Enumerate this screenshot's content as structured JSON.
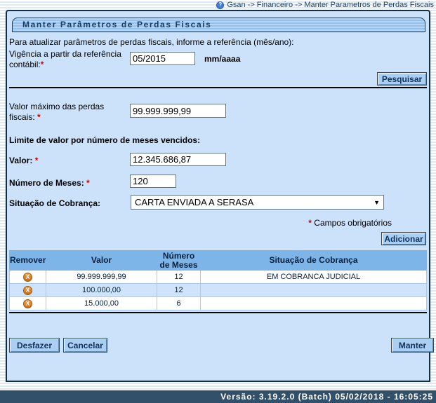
{
  "colors": {
    "panel_bg": "#cce2fa",
    "panel_border": "#152e47",
    "table_header_blue": "#7db5e9",
    "row_alt_blue": "#cfe4fa",
    "button_blue": "#abcff2",
    "footer_navy": "#33506b",
    "remove_orange": "#df7e1e",
    "required_red": "#cc0000"
  },
  "breadcrumb": {
    "help_icon_glyph": "?",
    "path": "Gsan -> Financeiro -> Manter Parametros de Perdas Fiscais"
  },
  "page": {
    "title": "Manter Parâmetros de Perdas Fiscais",
    "intro": "Para atualizar parâmetros de perdas fiscais, informe a referência (mês/ano):"
  },
  "search_section": {
    "vigencia_label": "Vigência a partir da referência contábil:",
    "required_mark": "*",
    "vigencia_value": "05/2015",
    "vigencia_format_hint": "mm/aaaa",
    "pesquisar_button": "Pesquisar"
  },
  "form": {
    "valor_maximo_label": "Valor máximo das perdas fiscais: ",
    "valor_maximo_value": "99.999.999,99",
    "limite_heading": "Limite de valor por número de meses vencidos:",
    "valor_label": "Valor: ",
    "valor_value": "12.345.686,87",
    "meses_label": "Número de Meses: ",
    "meses_value": "120",
    "situacao_label": "Situação de Cobrança:",
    "situacao_value": "CARTA ENVIADA A SERASA",
    "dropdown_arrow_glyph": "▼",
    "required_mark": "*",
    "required_note": " Campos obrigatórios",
    "adicionar_button": "Adicionar"
  },
  "table": {
    "headers": [
      "Remover",
      "Valor",
      "Número de Meses",
      "Situação de Cobrança"
    ],
    "remove_glyph": "X",
    "rows": [
      {
        "valor": "99.999.999,99",
        "meses": "12",
        "situacao": "EM COBRANCA JUDICIAL"
      },
      {
        "valor": "100.000,00",
        "meses": "12",
        "situacao": ""
      },
      {
        "valor": "15.000,00",
        "meses": "6",
        "situacao": ""
      }
    ]
  },
  "actions": {
    "desfazer": "Desfazer",
    "cancelar": "Cancelar",
    "manter": "Manter"
  },
  "footer": {
    "version": "Versão: 3.19.2.0 (Batch) 05/02/2018 - 16:05:25"
  }
}
